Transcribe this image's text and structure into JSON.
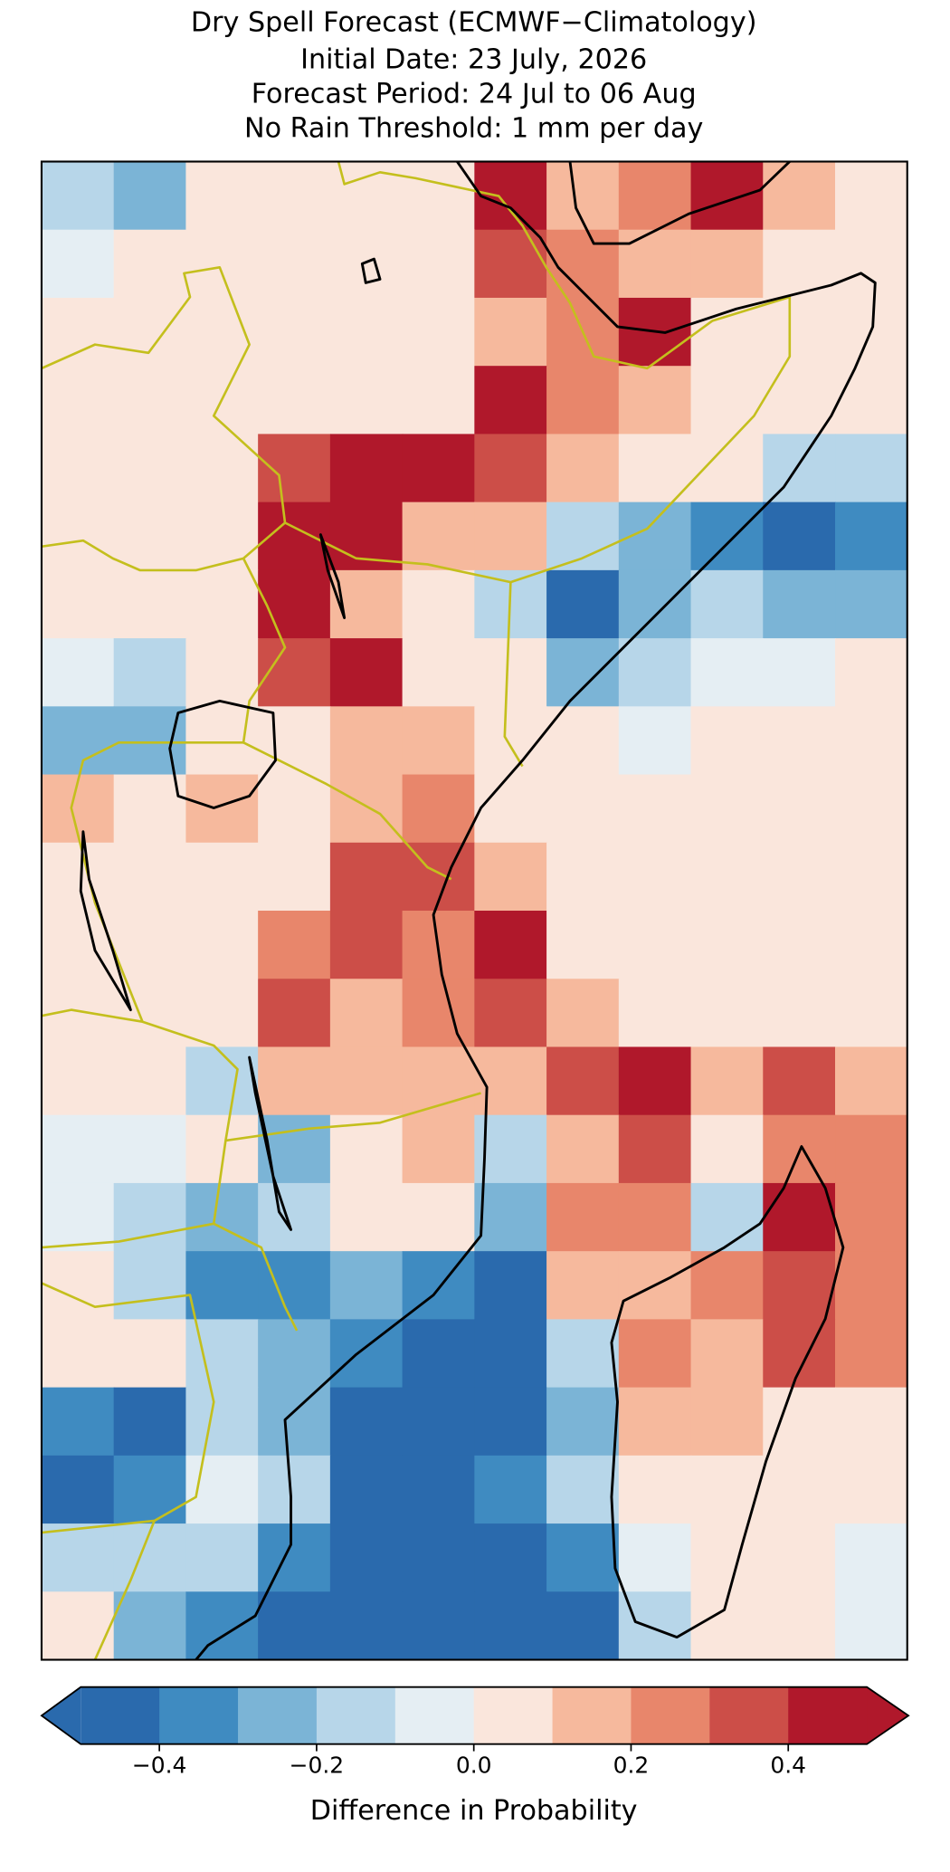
{
  "chart_data": {
    "type": "heatmap",
    "title": "Dry Spell Forecast (ECMWF−Climatology)",
    "subtitles": [
      "Initial Date: 23 July, 2026",
      "Forecast Period: 24 Jul to 06 Aug",
      "No Rain Threshold: 1 mm per day"
    ],
    "values": [
      [
        -0.15,
        -0.25,
        0.05,
        0.05,
        0.05,
        0.05,
        0.45,
        0.15,
        0.25,
        0.45,
        0.15,
        0.05
      ],
      [
        -0.05,
        0.05,
        0.05,
        0.05,
        0.05,
        0.05,
        0.35,
        0.25,
        0.15,
        0.15,
        0.05,
        0.05
      ],
      [
        0.05,
        0.05,
        0.05,
        0.05,
        0.05,
        0.05,
        0.15,
        0.25,
        0.45,
        0.05,
        0.05,
        0.05
      ],
      [
        0.05,
        0.05,
        0.05,
        0.05,
        0.05,
        0.05,
        0.45,
        0.25,
        0.15,
        0.05,
        0.05,
        0.05
      ],
      [
        0.05,
        0.05,
        0.05,
        0.35,
        0.45,
        0.45,
        0.35,
        0.15,
        0.05,
        0.05,
        -0.15,
        -0.15
      ],
      [
        0.05,
        0.05,
        0.05,
        0.45,
        0.45,
        0.15,
        0.15,
        -0.15,
        -0.25,
        -0.35,
        -0.45,
        -0.35
      ],
      [
        0.05,
        0.05,
        0.05,
        0.45,
        0.15,
        0.05,
        -0.15,
        -0.45,
        -0.25,
        -0.15,
        -0.25,
        -0.25
      ],
      [
        -0.05,
        -0.15,
        0.05,
        0.35,
        0.45,
        0.05,
        0.05,
        -0.25,
        -0.15,
        -0.05,
        -0.05,
        0.05
      ],
      [
        -0.25,
        -0.25,
        0.05,
        0.05,
        0.15,
        0.15,
        0.05,
        0.05,
        -0.05,
        0.05,
        0.05,
        0.05
      ],
      [
        0.15,
        0.05,
        0.15,
        0.05,
        0.15,
        0.25,
        0.05,
        0.05,
        0.05,
        0.05,
        0.05,
        0.05
      ],
      [
        0.05,
        0.05,
        0.05,
        0.05,
        0.35,
        0.35,
        0.15,
        0.05,
        0.05,
        0.05,
        0.05,
        0.05
      ],
      [
        0.05,
        0.05,
        0.05,
        0.25,
        0.35,
        0.25,
        0.45,
        0.05,
        0.05,
        0.05,
        0.05,
        0.05
      ],
      [
        0.05,
        0.05,
        0.05,
        0.35,
        0.15,
        0.25,
        0.35,
        0.15,
        0.05,
        0.05,
        0.05,
        0.05
      ],
      [
        0.05,
        0.05,
        -0.15,
        0.15,
        0.15,
        0.15,
        0.15,
        0.35,
        0.45,
        0.15,
        0.35,
        0.15
      ],
      [
        -0.05,
        -0.05,
        0.05,
        -0.25,
        0.05,
        0.15,
        -0.15,
        0.15,
        0.35,
        0.05,
        0.25,
        0.25
      ],
      [
        -0.05,
        -0.15,
        -0.25,
        -0.15,
        0.05,
        0.05,
        -0.25,
        0.25,
        0.25,
        -0.15,
        0.45,
        0.25
      ],
      [
        0.05,
        -0.15,
        -0.35,
        -0.35,
        -0.25,
        -0.35,
        -0.45,
        0.15,
        0.15,
        0.25,
        0.35,
        0.25
      ],
      [
        0.05,
        0.05,
        -0.15,
        -0.25,
        -0.35,
        -0.45,
        -0.45,
        -0.15,
        0.25,
        0.15,
        0.35,
        0.25
      ],
      [
        -0.35,
        -0.45,
        -0.15,
        -0.25,
        -0.45,
        -0.45,
        -0.45,
        -0.25,
        0.15,
        0.15,
        0.05,
        0.05
      ],
      [
        -0.45,
        -0.35,
        -0.05,
        -0.15,
        -0.45,
        -0.45,
        -0.35,
        -0.15,
        0.05,
        0.05,
        0.05,
        0.05
      ],
      [
        -0.15,
        -0.15,
        -0.15,
        -0.35,
        -0.45,
        -0.45,
        -0.45,
        -0.35,
        -0.05,
        0.05,
        0.05,
        -0.05
      ],
      [
        0.05,
        -0.25,
        -0.35,
        -0.45,
        -0.45,
        -0.45,
        -0.45,
        -0.45,
        -0.15,
        0.05,
        0.05,
        -0.05
      ]
    ],
    "colorbar": {
      "label": "Difference in Probability",
      "bins": [
        -0.5,
        -0.4,
        -0.3,
        -0.2,
        -0.1,
        0,
        0.1,
        0.2,
        0.3,
        0.4,
        0.5
      ],
      "colors": [
        "#2a6aad",
        "#3f8bc1",
        "#7bb4d6",
        "#b7d6e9",
        "#e5eef3",
        "#fae6dc",
        "#f6b99d",
        "#e8866b",
        "#cc4e48",
        "#b0182b"
      ],
      "extend": "both",
      "ticks": [
        {
          "value": -0.4,
          "label": "−0.4"
        },
        {
          "value": -0.2,
          "label": "−0.2"
        },
        {
          "value": 0,
          "label": "0.0"
        },
        0.2,
        0.4
      ]
    }
  }
}
